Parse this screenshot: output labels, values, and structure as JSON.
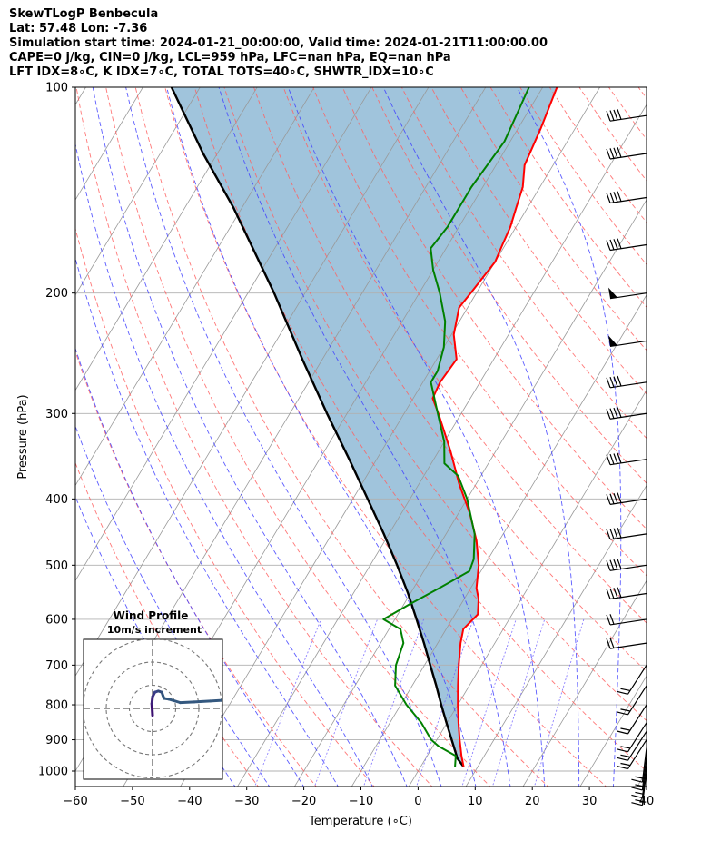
{
  "title_lines": [
    "SkewTLogP Benbecula",
    "Lat: 57.48   Lon: -7.36",
    "Simulation start time: 2024-01-21_00:00:00, Valid time: 2024-01-21T11:00:00.00",
    "CAPE=0 j/kg, CIN=0 j/kg, LCL=959 hPa, LFC=nan hPa, EQ=nan hPa",
    "LFT IDX=8∘C, K IDX=7∘C, TOTAL TOTS=40∘C, SHWTR_IDX=10∘C"
  ],
  "chart_data": {
    "type": "skewt",
    "xlabel": "Temperature (∘C)",
    "ylabel": "Pressure (hPa)",
    "xlim": [
      -60,
      40
    ],
    "ylim": [
      1050,
      100
    ],
    "x_ticks": [
      -60,
      -50,
      -40,
      -30,
      -20,
      -10,
      0,
      10,
      20,
      30,
      40
    ],
    "x_tick_labels": [
      "−60",
      "−50",
      "−40",
      "−30",
      "−20",
      "−10",
      "0",
      "10",
      "20",
      "30",
      "40"
    ],
    "p_ticks": [
      1000,
      900,
      800,
      700,
      600,
      500,
      400,
      300,
      200,
      100
    ],
    "p_tick_labels": [
      "1000",
      "900",
      "800",
      "700",
      "600",
      "500",
      "400",
      "300",
      "200",
      "100"
    ],
    "colors": {
      "temperature": "#ff0000",
      "dewpoint": "#008000",
      "parcel": "#000000",
      "cin_fill": "#a0c4dc",
      "dry_adiabat": "#ff6060",
      "moist_adiabat": "#4040ff",
      "mixing_ratio": "#7060ff",
      "isotherm": "#999999",
      "grid": "#b0b0b0",
      "hodograph": "#34487a"
    },
    "temperature": [
      {
        "p": 985,
        "t": 7.5
      },
      {
        "p": 950,
        "t": 6
      },
      {
        "p": 900,
        "t": 4
      },
      {
        "p": 850,
        "t": 2
      },
      {
        "p": 800,
        "t": 0
      },
      {
        "p": 750,
        "t": -2
      },
      {
        "p": 700,
        "t": -4
      },
      {
        "p": 650,
        "t": -6
      },
      {
        "p": 620,
        "t": -7
      },
      {
        "p": 590,
        "t": -6
      },
      {
        "p": 560,
        "t": -7.5
      },
      {
        "p": 540,
        "t": -9
      },
      {
        "p": 500,
        "t": -11
      },
      {
        "p": 460,
        "t": -14
      },
      {
        "p": 420,
        "t": -18
      },
      {
        "p": 380,
        "t": -23
      },
      {
        "p": 340,
        "t": -28
      },
      {
        "p": 300,
        "t": -34
      },
      {
        "p": 285,
        "t": -36.6
      },
      {
        "p": 270,
        "t": -37
      },
      {
        "p": 250,
        "t": -36.5
      },
      {
        "p": 230,
        "t": -39.6
      },
      {
        "p": 210,
        "t": -41.5
      },
      {
        "p": 200,
        "t": -41
      },
      {
        "p": 180,
        "t": -40
      },
      {
        "p": 170,
        "t": -40.5
      },
      {
        "p": 160,
        "t": -41
      },
      {
        "p": 150,
        "t": -42
      },
      {
        "p": 140,
        "t": -43
      },
      {
        "p": 130,
        "t": -45
      },
      {
        "p": 115,
        "t": -46
      },
      {
        "p": 100,
        "t": -47.5
      }
    ],
    "dewpoint": [
      {
        "p": 985,
        "t": 6
      },
      {
        "p": 950,
        "t": 5
      },
      {
        "p": 920,
        "t": 1
      },
      {
        "p": 900,
        "t": -1
      },
      {
        "p": 850,
        "t": -4.5
      },
      {
        "p": 800,
        "t": -9
      },
      {
        "p": 750,
        "t": -13
      },
      {
        "p": 700,
        "t": -15
      },
      {
        "p": 650,
        "t": -16
      },
      {
        "p": 620,
        "t": -18
      },
      {
        "p": 600,
        "t": -22
      },
      {
        "p": 570,
        "t": -19
      },
      {
        "p": 540,
        "t": -15.5
      },
      {
        "p": 510,
        "t": -12
      },
      {
        "p": 490,
        "t": -12.5
      },
      {
        "p": 450,
        "t": -15
      },
      {
        "p": 400,
        "t": -20
      },
      {
        "p": 370,
        "t": -24
      },
      {
        "p": 355,
        "t": -27.7
      },
      {
        "p": 330,
        "t": -30
      },
      {
        "p": 300,
        "t": -34.1
      },
      {
        "p": 270,
        "t": -38.6
      },
      {
        "p": 260,
        "t": -38.6
      },
      {
        "p": 240,
        "t": -40
      },
      {
        "p": 220,
        "t": -42.5
      },
      {
        "p": 200,
        "t": -46.4
      },
      {
        "p": 185,
        "t": -50
      },
      {
        "p": 172,
        "t": -52.7
      },
      {
        "p": 160,
        "t": -52
      },
      {
        "p": 140,
        "t": -52
      },
      {
        "p": 120,
        "t": -51
      },
      {
        "p": 100,
        "t": -52.4
      }
    ],
    "parcel": [
      {
        "p": 985,
        "t": 7.5
      },
      {
        "p": 959,
        "t": 5.6
      },
      {
        "p": 900,
        "t": 2.6
      },
      {
        "p": 850,
        "t": -0.1
      },
      {
        "p": 800,
        "t": -2.9
      },
      {
        "p": 750,
        "t": -5.8
      },
      {
        "p": 700,
        "t": -9
      },
      {
        "p": 650,
        "t": -12.4
      },
      {
        "p": 600,
        "t": -16.2
      },
      {
        "p": 550,
        "t": -20.4
      },
      {
        "p": 500,
        "t": -25.3
      },
      {
        "p": 450,
        "t": -30.9
      },
      {
        "p": 400,
        "t": -37.4
      },
      {
        "p": 350,
        "t": -44.8
      },
      {
        "p": 300,
        "t": -53.5
      },
      {
        "p": 250,
        "t": -63.5
      },
      {
        "p": 200,
        "t": -75.4
      },
      {
        "p": 150,
        "t": -91.5
      },
      {
        "p": 125,
        "t": -102.5
      },
      {
        "p": 100,
        "t": -115
      }
    ],
    "winds_levels": [
      1000,
      975,
      950,
      925,
      900,
      875,
      850,
      800,
      750,
      700,
      650,
      600,
      550,
      500,
      450,
      400,
      350,
      300,
      270,
      235,
      200,
      170,
      145,
      125,
      110
    ],
    "hodograph": {
      "title": "Wind Profile",
      "subtitle": "10m/s increment",
      "rings": [
        10,
        20,
        30
      ],
      "points": [
        {
          "u": 0,
          "v": -3
        },
        {
          "u": -0.3,
          "v": 2
        },
        {
          "u": 0,
          "v": 5
        },
        {
          "u": 1,
          "v": 7
        },
        {
          "u": 2.5,
          "v": 7.5
        },
        {
          "u": 4,
          "v": 7
        },
        {
          "u": 4.5,
          "v": 5.5
        },
        {
          "u": 5,
          "v": 4.3
        },
        {
          "u": 7,
          "v": 4
        },
        {
          "u": 12,
          "v": 2.5
        },
        {
          "u": 18,
          "v": 2.8
        },
        {
          "u": 25,
          "v": 3.2
        },
        {
          "u": 30,
          "v": 3.5
        },
        {
          "u": 31,
          "v": 2
        }
      ]
    }
  }
}
